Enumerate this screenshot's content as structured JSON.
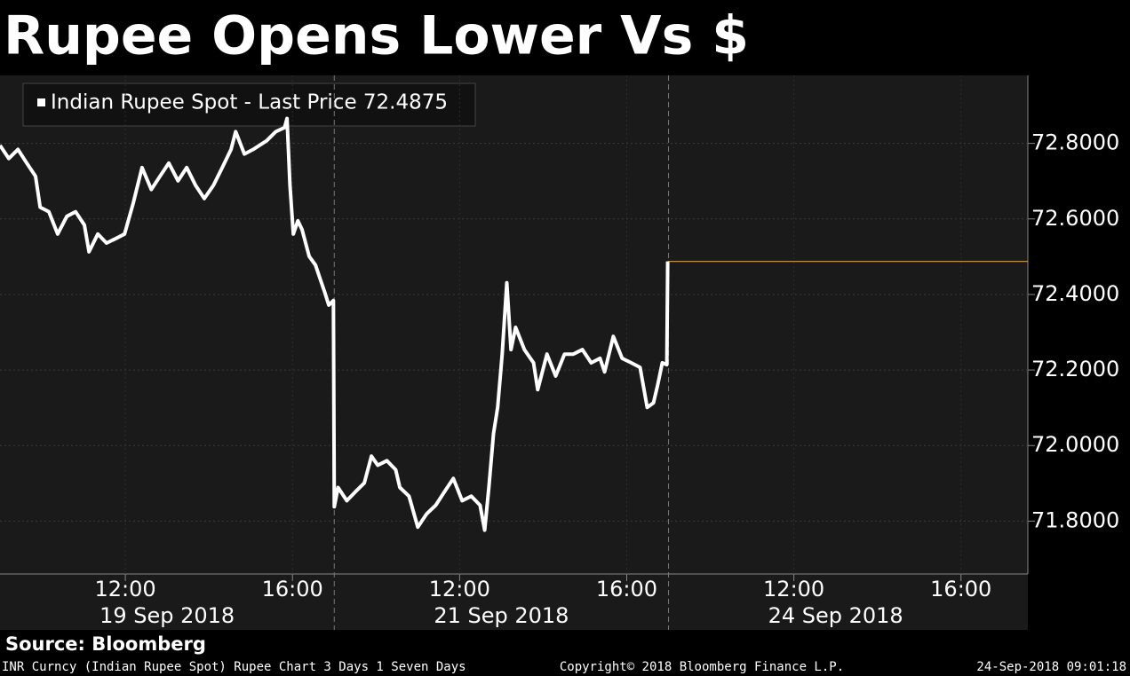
{
  "chart_data": {
    "type": "line",
    "title": "Rupee Opens Lower Vs $",
    "x": [
      0,
      0.21,
      0.43,
      0.64,
      0.85,
      0.96,
      1.17,
      1.38,
      1.6,
      1.81,
      2.02,
      2.13,
      2.34,
      2.55,
      2.77,
      2.98,
      3.19,
      3.4,
      3.62,
      3.83,
      4.04,
      4.26,
      4.47,
      4.68,
      4.89,
      5.11,
      5.32,
      5.53,
      5.64,
      5.85,
      6.06,
      6.38,
      6.6,
      6.81,
      6.87,
      6.94,
      7.02,
      7.13,
      7.23,
      7.4,
      7.55,
      7.66,
      7.77,
      7.87,
      7.98,
      8.0,
      8.09,
      8.3,
      8.51,
      8.72,
      8.89,
      9.04,
      9.26,
      9.47,
      9.57,
      9.79,
      10.0,
      10.21,
      10.43,
      10.64,
      10.85,
      11.06,
      11.28,
      11.49,
      11.6,
      11.7,
      11.81,
      11.91,
      12.02,
      12.13,
      12.23,
      12.34,
      12.55,
      12.77,
      12.87,
      13.09,
      13.3,
      13.51,
      13.72,
      13.94,
      14.15,
      14.36,
      14.47,
      14.68,
      14.89,
      15.11,
      15.32,
      15.49,
      15.64,
      15.74,
      15.85,
      15.96,
      15.98
    ],
    "series": [
      {
        "name": "Indian Rupee Spot - Last Price 72.4875",
        "color": "#ffffff",
        "last_price_color": "#f0961e",
        "values": [
          72.795,
          72.76,
          72.784,
          72.748,
          72.713,
          72.631,
          72.619,
          72.56,
          72.607,
          72.619,
          72.584,
          72.513,
          72.56,
          72.536,
          72.548,
          72.56,
          72.642,
          72.736,
          72.678,
          72.713,
          72.748,
          72.701,
          72.736,
          72.689,
          72.654,
          72.689,
          72.736,
          72.784,
          72.831,
          72.772,
          72.784,
          72.807,
          72.831,
          72.842,
          72.866,
          72.689,
          72.56,
          72.595,
          72.572,
          72.501,
          72.478,
          72.442,
          72.407,
          72.372,
          72.384,
          71.838,
          71.889,
          71.854,
          71.878,
          71.901,
          71.972,
          71.948,
          71.96,
          71.936,
          71.889,
          71.866,
          71.784,
          71.819,
          71.842,
          71.878,
          71.913,
          71.854,
          71.866,
          71.842,
          71.776,
          71.889,
          72.031,
          72.101,
          72.242,
          72.431,
          72.254,
          72.313,
          72.254,
          72.219,
          72.148,
          72.242,
          72.184,
          72.242,
          72.242,
          72.254,
          72.219,
          72.231,
          72.195,
          72.289,
          72.231,
          72.219,
          72.207,
          72.101,
          72.113,
          72.16,
          72.219,
          72.214,
          72.4875
        ]
      }
    ],
    "xlim": [
      0,
      24.6
    ],
    "xticks": [
      {
        "value": 3,
        "label": "12:00"
      },
      {
        "value": 7,
        "label": "16:00"
      },
      {
        "value": 11,
        "label": "12:00"
      },
      {
        "value": 15,
        "label": "16:00"
      },
      {
        "value": 19,
        "label": "12:00"
      },
      {
        "value": 23,
        "label": "16:00"
      }
    ],
    "date_labels": [
      {
        "value": 4,
        "label": "19 Sep 2018"
      },
      {
        "value": 12,
        "label": "21 Sep 2018"
      },
      {
        "value": 20,
        "label": "24 Sep 2018"
      }
    ],
    "day_breaks": [
      8,
      16
    ],
    "ylim": [
      71.66,
      72.98
    ],
    "yticks": [
      {
        "value": 71.8,
        "label": "71.8000"
      },
      {
        "value": 72.0,
        "label": "72.0000"
      },
      {
        "value": 72.2,
        "label": "72.2000"
      },
      {
        "value": 72.4,
        "label": "72.4000"
      },
      {
        "value": 72.6,
        "label": "72.6000"
      },
      {
        "value": 72.8,
        "label": "72.8000"
      }
    ],
    "grid": true,
    "source": "Source: Bloomberg",
    "footer_left": "INR Curncy (Indian Rupee Spot) Rupee Chart 3 Days 1 Seven Days",
    "footer_center": "Copyright© 2018 Bloomberg Finance L.P.",
    "footer_right": "24-Sep-2018 09:01:18"
  }
}
